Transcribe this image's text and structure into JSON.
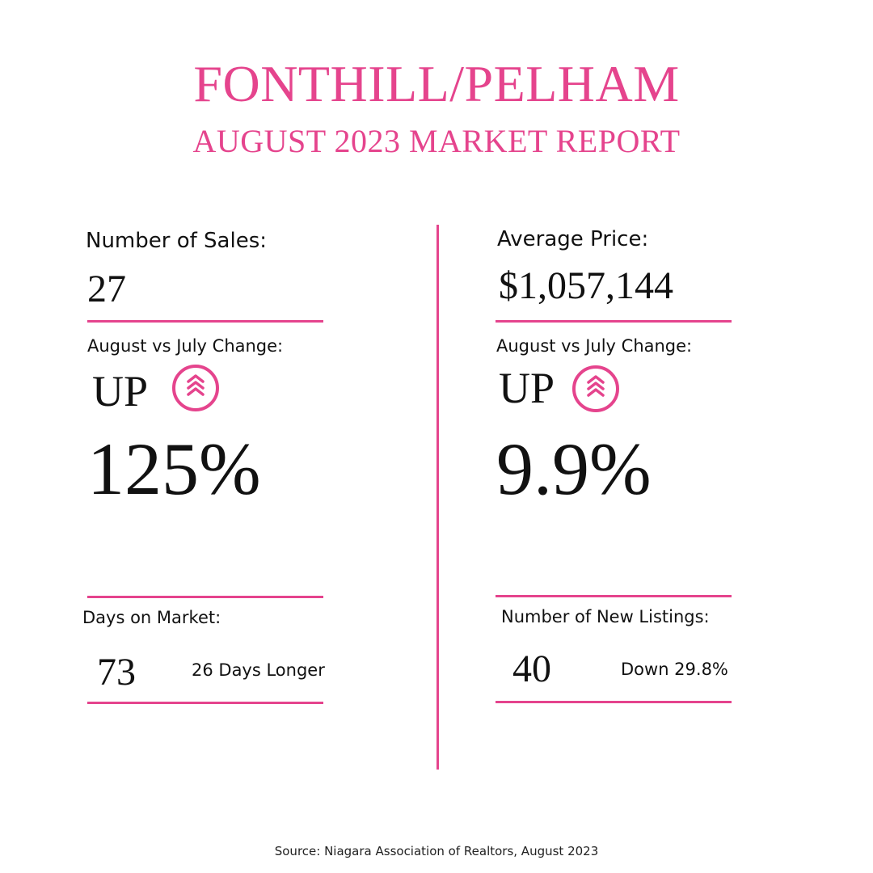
{
  "header": {
    "title": "FONTHILL/PELHAM",
    "subtitle": "AUGUST 2023 MARKET REPORT"
  },
  "left": {
    "sales_label": "Number of Sales:",
    "sales_value": "27",
    "change_label": "August vs July Change:",
    "direction": "UP",
    "direction_icon": "double-chevron-up-icon",
    "change_percent": "125%",
    "dom_label": "Days on Market:",
    "dom_value": "73",
    "dom_note": "26 Days Longer"
  },
  "right": {
    "price_label": "Average Price:",
    "price_value": "$1,057,144",
    "change_label": "August vs July Change:",
    "direction": "UP",
    "direction_icon": "double-chevron-up-icon",
    "change_percent": "9.9%",
    "listings_label": "Number of New Listings:",
    "listings_value": "40",
    "listings_note": "Down 29.8%"
  },
  "footer": {
    "source": "Source: Niagara Association of Realtors, August 2023"
  },
  "colors": {
    "accent": "#e5448d",
    "text": "#111111",
    "background": "#ffffff"
  }
}
